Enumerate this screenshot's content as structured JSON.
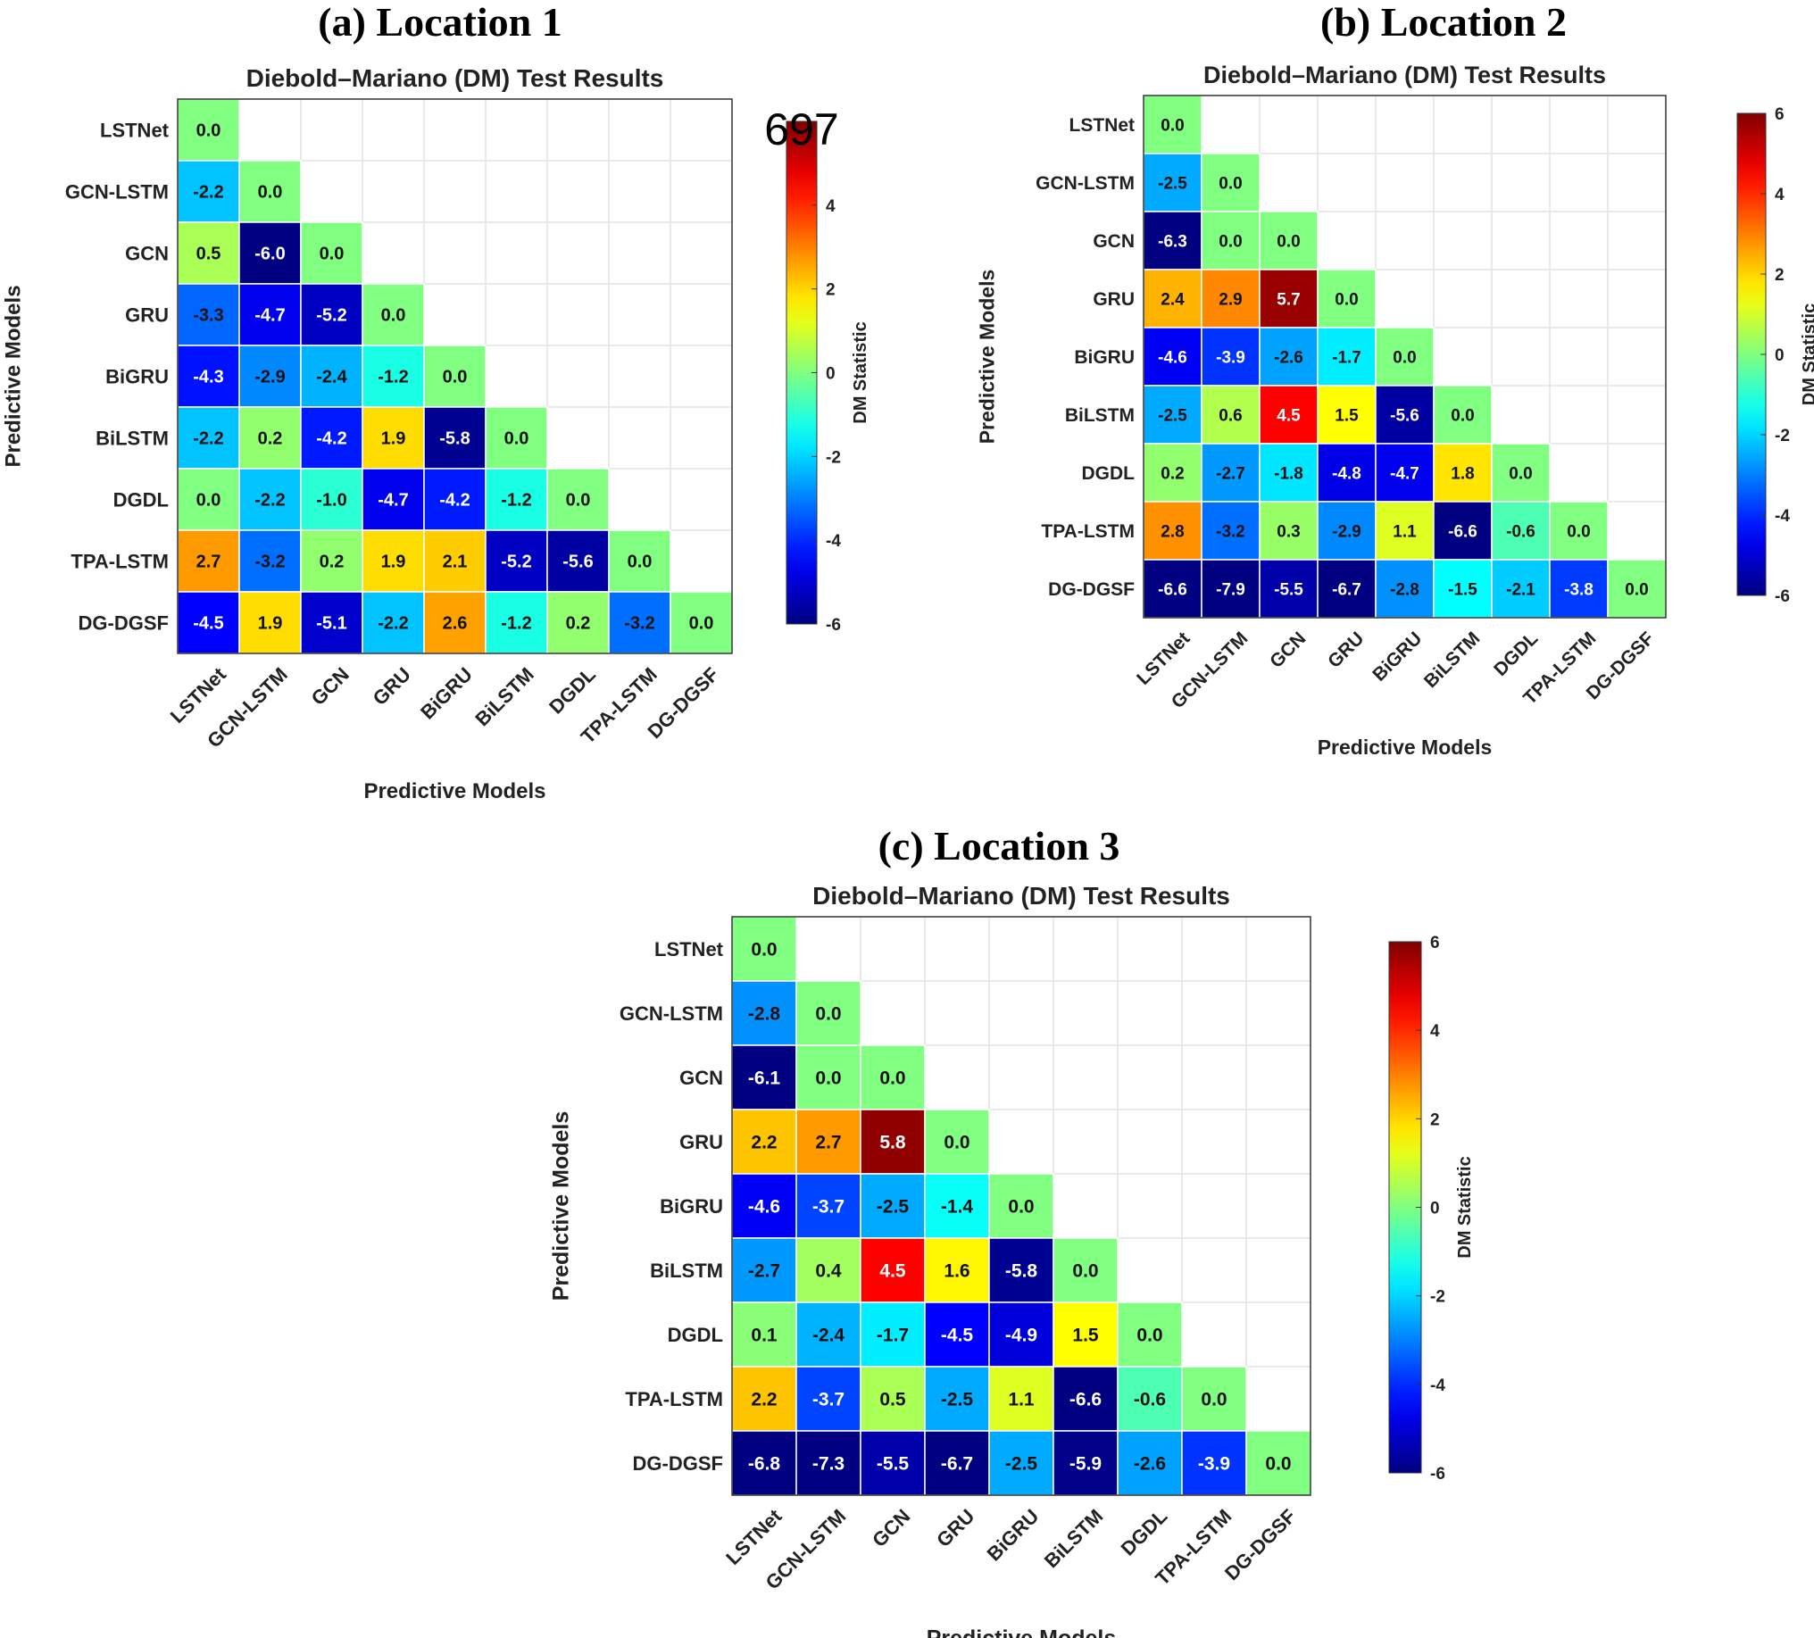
{
  "chart_data": [
    {
      "type": "heatmap",
      "panel_title": "(a) Location 1",
      "title": "Diebold–Mariano (DM) Test Results",
      "xlabel": "Predictive Models",
      "ylabel": "Predictive Models",
      "colorbar_label": "DM Statistic",
      "colorbar_ticks": [
        "-6",
        "-4",
        "-2",
        "0",
        "2",
        "4"
      ],
      "overlay_text": "697",
      "clim": [
        -6,
        6
      ],
      "colormap": "jet",
      "models": [
        "LSTNet",
        "GCN-LSTM",
        "GCN",
        "GRU",
        "BiGRU",
        "BiLSTM",
        "DGDL",
        "TPA-LSTM",
        "DG-DGSF"
      ],
      "values": [
        [
          0.0
        ],
        [
          -2.2,
          0.0
        ],
        [
          0.5,
          -6.0,
          0.0
        ],
        [
          -3.3,
          -4.7,
          -5.2,
          0.0
        ],
        [
          -4.3,
          -2.9,
          -2.4,
          -1.2,
          0.0
        ],
        [
          -2.2,
          0.2,
          -4.2,
          1.9,
          -5.8,
          0.0
        ],
        [
          0.0,
          -2.2,
          -1.0,
          -4.7,
          -4.2,
          -1.2,
          0.0
        ],
        [
          2.7,
          -3.2,
          0.2,
          1.9,
          2.1,
          -5.2,
          -5.6,
          0.0
        ],
        [
          -4.5,
          1.9,
          -5.1,
          -2.2,
          2.6,
          -1.2,
          0.2,
          -3.2,
          0.0
        ]
      ]
    },
    {
      "type": "heatmap",
      "panel_title": "(b) Location 2",
      "title": "Diebold–Mariano (DM) Test Results",
      "xlabel": "Predictive Models",
      "ylabel": "Predictive Models",
      "colorbar_label": "DM Statistic",
      "colorbar_ticks": [
        "-6",
        "-4",
        "-2",
        "0",
        "2",
        "4",
        "6"
      ],
      "clim": [
        -6,
        6
      ],
      "colormap": "jet",
      "models": [
        "LSTNet",
        "GCN-LSTM",
        "GCN",
        "GRU",
        "BiGRU",
        "BiLSTM",
        "DGDL",
        "TPA-LSTM",
        "DG-DGSF"
      ],
      "values": [
        [
          0.0
        ],
        [
          -2.5,
          0.0
        ],
        [
          -6.3,
          0.0,
          0.0
        ],
        [
          2.4,
          2.9,
          5.7,
          0.0
        ],
        [
          -4.6,
          -3.9,
          -2.6,
          -1.7,
          0.0
        ],
        [
          -2.5,
          0.6,
          4.5,
          1.5,
          -5.6,
          0.0
        ],
        [
          0.2,
          -2.7,
          -1.8,
          -4.8,
          -4.7,
          1.8,
          0.0
        ],
        [
          2.8,
          -3.2,
          0.3,
          -2.9,
          1.1,
          -6.6,
          -0.6,
          0.0
        ],
        [
          -6.6,
          -7.9,
          -5.5,
          -6.7,
          -2.8,
          -1.5,
          -2.1,
          -3.8,
          0.0
        ]
      ]
    },
    {
      "type": "heatmap",
      "panel_title": "(c) Location 3",
      "title": "Diebold–Mariano (DM) Test Results",
      "xlabel": "Predictive Models",
      "ylabel": "Predictive Models",
      "colorbar_label": "DM Statistic",
      "colorbar_ticks": [
        "-6",
        "-4",
        "-2",
        "0",
        "2",
        "4",
        "6"
      ],
      "clim": [
        -6,
        6
      ],
      "colormap": "jet",
      "models": [
        "LSTNet",
        "GCN-LSTM",
        "GCN",
        "GRU",
        "BiGRU",
        "BiLSTM",
        "DGDL",
        "TPA-LSTM",
        "DG-DGSF"
      ],
      "values": [
        [
          0.0
        ],
        [
          -2.8,
          0.0
        ],
        [
          -6.1,
          0.0,
          0.0
        ],
        [
          2.2,
          2.7,
          5.8,
          0.0
        ],
        [
          -4.6,
          -3.7,
          -2.5,
          -1.4,
          0.0
        ],
        [
          -2.7,
          0.4,
          4.5,
          1.6,
          -5.8,
          0.0
        ],
        [
          0.1,
          -2.4,
          -1.7,
          -4.5,
          -4.9,
          1.5,
          0.0
        ],
        [
          2.2,
          -3.7,
          0.5,
          -2.5,
          1.1,
          -6.6,
          -0.6,
          0.0
        ],
        [
          -6.8,
          -7.3,
          -5.5,
          -6.7,
          -2.5,
          -5.9,
          -2.6,
          -3.9,
          0.0
        ]
      ]
    }
  ]
}
